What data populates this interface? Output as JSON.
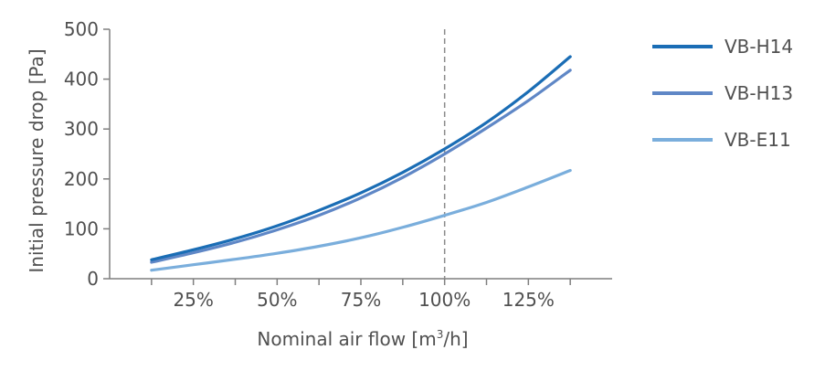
{
  "chart_data": {
    "type": "line",
    "xlabel": "Nominal air flow [m",
    "xlabel_sup": "3",
    "xlabel_suffix": "/h]",
    "ylabel": "Initial pressure drop [Pa]",
    "ylim": [
      0,
      500
    ],
    "xlim": [
      0,
      150
    ],
    "y_ticks": [
      0,
      100,
      200,
      300,
      400,
      500
    ],
    "y_tick_labels": [
      "0",
      "100",
      "200",
      "300",
      "400",
      "500"
    ],
    "x_ticks": [
      25,
      50,
      75,
      100,
      125
    ],
    "x_tick_labels": [
      "25%",
      "50%",
      "75%",
      "100%",
      "125%"
    ],
    "x_minor_ticks": [
      12.5,
      37.5,
      62.5,
      87.5,
      112.5,
      137.5
    ],
    "reference_line_x": 100,
    "grid": false,
    "legend_position": "right",
    "x": [
      12.5,
      25,
      37.5,
      50,
      62.5,
      75,
      87.5,
      100,
      112.5,
      125,
      137.5
    ],
    "series": [
      {
        "name": "VB-H14",
        "color": "#1a6db5",
        "values": [
          38,
          58,
          80,
          106,
          137,
          172,
          213,
          260,
          313,
          375,
          445
        ]
      },
      {
        "name": "VB-H13",
        "color": "#5f87c6",
        "values": [
          33,
          52,
          73,
          98,
          127,
          162,
          203,
          250,
          302,
          357,
          418
        ]
      },
      {
        "name": "VB-E11",
        "color": "#7aaedc",
        "values": [
          17,
          28,
          39,
          51,
          65,
          82,
          103,
          127,
          153,
          184,
          217
        ]
      }
    ]
  }
}
